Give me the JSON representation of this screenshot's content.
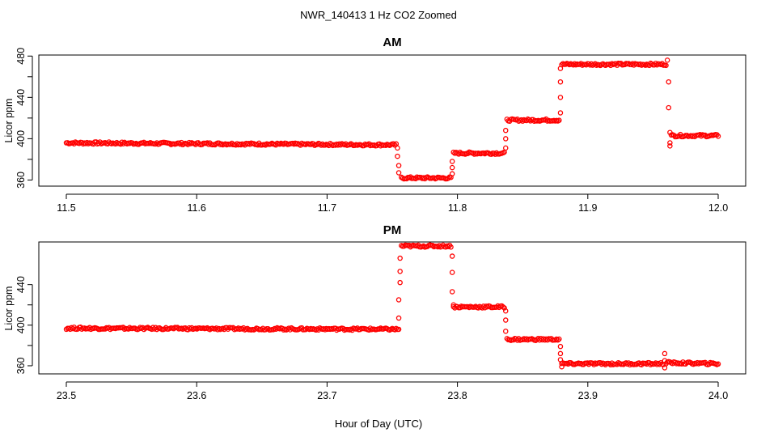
{
  "figure": {
    "suptitle": "NWR_140413  1 Hz CO2 Zoomed",
    "xlabel": "Hour of Day (UTC)"
  },
  "colors": {
    "points": "#ff0000",
    "frame": "#000000",
    "background": "#ffffff"
  },
  "chart_data": [
    {
      "type": "scatter",
      "title": "AM",
      "ylabel": "Licor ppm",
      "xlim": [
        11.5,
        12.0
      ],
      "ylim": [
        358,
        481
      ],
      "xticks": [
        "11.5",
        "11.6",
        "11.7",
        "11.8",
        "11.9",
        "12.0"
      ],
      "yticks": [
        "360",
        "400",
        "440",
        "480"
      ],
      "ytick_values": [
        360,
        400,
        440,
        480
      ],
      "series": [
        {
          "name": "Licor ppm",
          "plateaus": [
            {
              "x0": 11.5,
              "x1": 11.753,
              "y0": 396,
              "y1": 394
            },
            {
              "x0": 11.757,
              "x1": 11.795,
              "y0": 362,
              "y1": 362
            },
            {
              "x0": 11.797,
              "x1": 11.836,
              "y0": 386,
              "y1": 386
            },
            {
              "x0": 11.838,
              "x1": 11.878,
              "y0": 418,
              "y1": 418
            },
            {
              "x0": 11.88,
              "x1": 11.96,
              "y0": 472,
              "y1": 472
            },
            {
              "x0": 11.964,
              "x1": 12.0,
              "y0": 403,
              "y1": 403
            }
          ],
          "transitions": [
            [
              11.754,
              391
            ],
            [
              11.754,
              383
            ],
            [
              11.755,
              374
            ],
            [
              11.755,
              367
            ],
            [
              11.796,
              366
            ],
            [
              11.796,
              372
            ],
            [
              11.796,
              378
            ],
            [
              11.837,
              391
            ],
            [
              11.837,
              400
            ],
            [
              11.837,
              408
            ],
            [
              11.879,
              425
            ],
            [
              11.879,
              440
            ],
            [
              11.879,
              455
            ],
            [
              11.879,
              468
            ],
            [
              11.961,
              476
            ],
            [
              11.962,
              455
            ],
            [
              11.962,
              430
            ],
            [
              11.963,
              406
            ],
            [
              11.963,
              396
            ],
            [
              11.963,
              393
            ]
          ]
        }
      ]
    },
    {
      "type": "scatter",
      "title": "PM",
      "ylabel": "Licor ppm",
      "xlim": [
        23.5,
        24.0
      ],
      "ylim": [
        352,
        482
      ],
      "xticks": [
        "23.5",
        "23.6",
        "23.7",
        "23.8",
        "23.9",
        "24.0"
      ],
      "yticks": [
        "360",
        "400",
        "440"
      ],
      "ytick_values": [
        360,
        400,
        440
      ],
      "series": [
        {
          "name": "Licor ppm",
          "plateaus": [
            {
              "x0": 23.5,
              "x1": 23.755,
              "y0": 397,
              "y1": 396
            },
            {
              "x0": 23.757,
              "x1": 23.795,
              "y0": 478,
              "y1": 478
            },
            {
              "x0": 23.797,
              "x1": 23.836,
              "y0": 418,
              "y1": 418
            },
            {
              "x0": 23.838,
              "x1": 23.878,
              "y0": 386,
              "y1": 386
            },
            {
              "x0": 23.88,
              "x1": 23.958,
              "y0": 362,
              "y1": 362
            },
            {
              "x0": 23.96,
              "x1": 24.0,
              "y0": 363,
              "y1": 362
            }
          ],
          "transitions": [
            [
              23.755,
              407
            ],
            [
              23.755,
              425
            ],
            [
              23.756,
              442
            ],
            [
              23.756,
              453
            ],
            [
              23.756,
              466
            ],
            [
              23.796,
              468
            ],
            [
              23.796,
              452
            ],
            [
              23.796,
              433
            ],
            [
              23.797,
              420
            ],
            [
              23.837,
              414
            ],
            [
              23.837,
              405
            ],
            [
              23.837,
              394
            ],
            [
              23.879,
              379
            ],
            [
              23.879,
              372
            ],
            [
              23.879,
              366
            ],
            [
              23.88,
              359
            ],
            [
              23.959,
              372
            ],
            [
              23.959,
              365
            ],
            [
              23.959,
              358
            ]
          ]
        }
      ]
    }
  ]
}
